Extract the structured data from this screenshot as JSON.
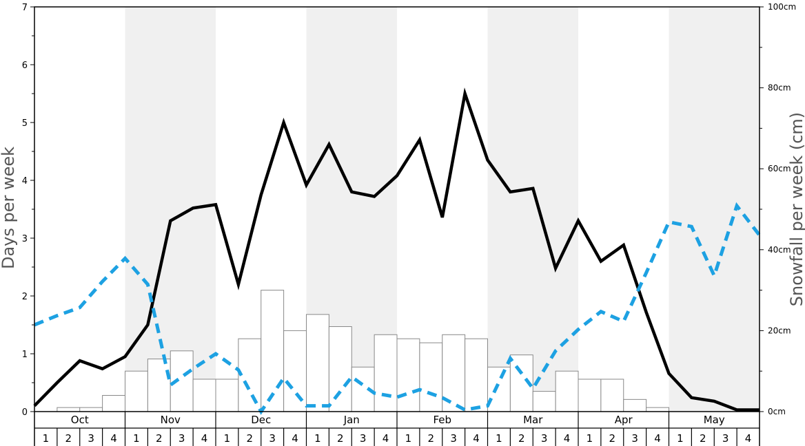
{
  "chart_data": {
    "type": "bar+line",
    "ylabel_left": "Days per week",
    "ylabel_right": "Snowfall per week (cm)",
    "ylim_left": [
      0,
      7
    ],
    "ylim_right": [
      0,
      100
    ],
    "left_ticks": [
      "0",
      "1",
      "2",
      "3",
      "4",
      "5",
      "6",
      "7"
    ],
    "right_ticks": [
      "0cm",
      "20cm",
      "40cm",
      "60cm",
      "80cm",
      "100cm"
    ],
    "right_tick_values": [
      0,
      20,
      40,
      60,
      80,
      100
    ],
    "months": [
      "Oct",
      "Nov",
      "Dec",
      "Jan",
      "Feb",
      "Mar",
      "Apr",
      "May"
    ],
    "weeks": [
      "1",
      "2",
      "3",
      "4"
    ],
    "shaded_months": [
      "Nov",
      "Jan",
      "Mar",
      "May"
    ],
    "snowfall_cm": [
      0,
      1,
      1,
      4,
      10,
      13,
      15,
      8,
      8,
      18,
      30,
      20,
      24,
      21,
      11,
      19,
      18,
      17,
      19,
      18,
      11,
      14,
      5,
      10,
      8,
      8,
      3,
      1,
      0,
      0,
      0,
      0
    ],
    "series": [
      {
        "style": "solid-black",
        "values": [
          0.1,
          0.5,
          0.88,
          0.74,
          0.95,
          1.5,
          3.3,
          3.52,
          3.58,
          2.2,
          3.75,
          5.0,
          3.92,
          4.62,
          3.8,
          3.72,
          4.08,
          4.7,
          3.36,
          5.5,
          4.35,
          3.8,
          3.86,
          2.48,
          3.3,
          2.6,
          2.88,
          1.72,
          0.66,
          0.24,
          0.18,
          0.03,
          0.03
        ]
      },
      {
        "style": "dashed-blue",
        "values": [
          1.5,
          1.66,
          1.8,
          2.25,
          2.65,
          2.2,
          0.46,
          0.74,
          1.0,
          0.72,
          0.0,
          0.58,
          0.1,
          0.1,
          0.6,
          0.32,
          0.25,
          0.38,
          0.24,
          0.03,
          0.1,
          0.92,
          0.4,
          1.05,
          1.42,
          1.73,
          1.56,
          2.4,
          3.28,
          3.2,
          2.35,
          3.56,
          3.05
        ]
      }
    ]
  }
}
